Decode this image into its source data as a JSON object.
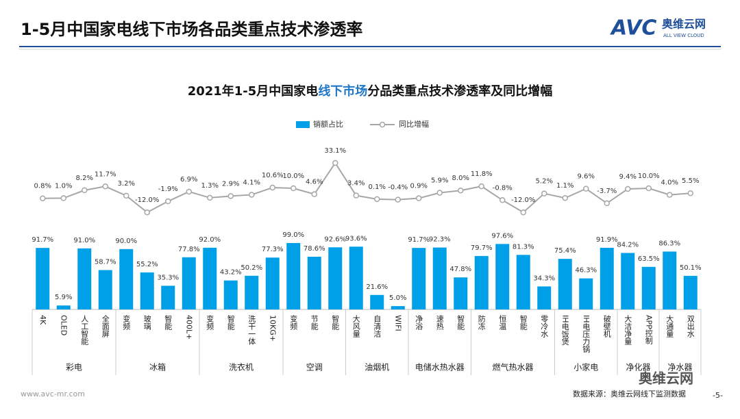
{
  "header": {
    "title": "1-5月中国家电线下市场各品类重点技术渗透率",
    "logo": "AVC",
    "logo_cn": "奥维云网",
    "logo_en": "ALL VIEW CLOUD"
  },
  "chart_data": {
    "type": "bar-line",
    "title": [
      "2021年1-5月中国家电",
      "线下市场",
      "分品类重点技术渗透率及同比增幅"
    ],
    "groups": [
      {
        "name": "彩电",
        "categories": [
          "4K",
          "OLED",
          "人工智能",
          "全面屏"
        ]
      },
      {
        "name": "冰箱",
        "categories": [
          "变频",
          "玻璃",
          "智能",
          "400L+"
        ]
      },
      {
        "name": "洗衣机",
        "categories": [
          "变频",
          "智能",
          "洗干一体",
          "10KG+"
        ]
      },
      {
        "name": "空调",
        "categories": [
          "变频",
          "节能",
          "智能"
        ]
      },
      {
        "name": "油烟机",
        "categories": [
          "大风量",
          "自清洁",
          "WIFI"
        ]
      },
      {
        "name": "电储水热水器",
        "categories": [
          "净浴",
          "速热",
          "智能"
        ]
      },
      {
        "name": "燃气热水器",
        "categories": [
          "防冻",
          "恒温",
          "智能",
          "零冷水"
        ]
      },
      {
        "name": "小家电",
        "categories": [
          "IH电饭煲",
          "IH电压力锅",
          "破壁机"
        ]
      },
      {
        "name": "净化器",
        "categories": [
          "大洁净量",
          "APP控制"
        ]
      },
      {
        "name": "净水器",
        "categories": [
          "大通量",
          "双出水"
        ]
      }
    ],
    "series": [
      {
        "name": "销额占比",
        "type": "bar",
        "color": "#00a0e9",
        "values": [
          91.7,
          5.9,
          91.0,
          58.7,
          90.0,
          55.2,
          35.3,
          77.8,
          92.0,
          43.2,
          50.2,
          77.3,
          99.0,
          78.6,
          92.6,
          93.6,
          21.6,
          5.0,
          91.7,
          92.3,
          47.8,
          79.7,
          97.6,
          81.3,
          34.3,
          75.4,
          46.3,
          91.9,
          84.2,
          63.5,
          86.3,
          50.1
        ],
        "value_labels": [
          "91.7%",
          "5.9%",
          "91.0%",
          "58.7%",
          "90.0%",
          "55.2%",
          "35.3%",
          "77.8%",
          "92.0%",
          "43.2%",
          "50.2%",
          "77.3%",
          "99.0%",
          "78.6%",
          "92.6%",
          "93.6%",
          "21.6%",
          "5.0%",
          "91.7%",
          "92.3%",
          "47.8%",
          "79.7%",
          "97.6%",
          "81.3%",
          "34.3%",
          "75.4%",
          "46.3%",
          "91.9%",
          "84.2%",
          "63.5%",
          "86.3%",
          "50.1%"
        ]
      },
      {
        "name": "同比增幅",
        "type": "line",
        "color": "#a6a6a6",
        "values": [
          0.8,
          1.0,
          8.2,
          11.7,
          3.2,
          -12.0,
          -1.9,
          6.9,
          1.3,
          2.9,
          4.1,
          10.6,
          10.0,
          4.6,
          33.1,
          3.4,
          0.1,
          -0.4,
          0.9,
          5.9,
          8.0,
          11.8,
          -0.8,
          -12.0,
          5.2,
          1.1,
          9.6,
          -3.7,
          9.4,
          10.0,
          4.0,
          5.5
        ],
        "value_labels": [
          "0.8%",
          "1.0%",
          "8.2%",
          "11.7%",
          "3.2%",
          "-12.0%",
          "-1.9%",
          "6.9%",
          "1.3%",
          "2.9%",
          "4.1%",
          "10.6%",
          "10.0%",
          "4.6%",
          "33.1%",
          "3.4%",
          "0.1%",
          "-0.4%",
          "0.9%",
          "5.9%",
          "8.0%",
          "11.8%",
          "-0.8%",
          "-12.0%",
          "5.2%",
          "1.1%",
          "9.6%",
          "-3.7%",
          "9.4%",
          "10.0%",
          "4.0%",
          "5.5%"
        ]
      }
    ],
    "legend": "top"
  },
  "footer": {
    "url": "www.avc-mr.com",
    "source": "数据来源：奥维云网线下监测数据",
    "page": "-5-",
    "watermark": "奥维云网"
  }
}
